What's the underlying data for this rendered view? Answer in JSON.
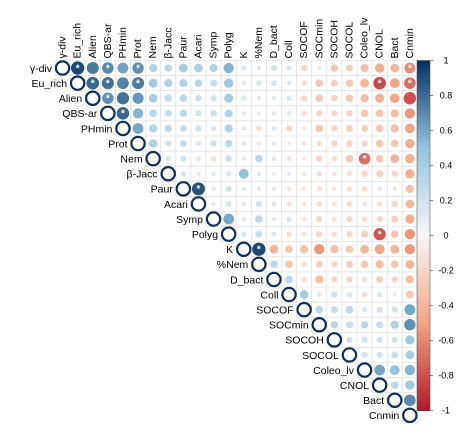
{
  "chart_data": {
    "type": "heatmap",
    "subtype": "upper-triangle circle correlogram",
    "variables": [
      "γ-div",
      "Eu_rich",
      "Alien",
      "QBS-ar",
      "PHmin",
      "Prot",
      "Nem",
      "β-Jacc",
      "Paur",
      "Acari",
      "Symp",
      "Polyg",
      "K",
      "%Nem",
      "D_bact",
      "Coll",
      "SOCOF",
      "SOCmin",
      "SOCOH",
      "SOCOL",
      "Coleo_lv",
      "CNOL",
      "Bact",
      "Cnmin"
    ],
    "significance_marker": "*",
    "colorbar": {
      "ticks": [
        "1",
        "0.8",
        "0.6",
        "0.4",
        "0.2",
        "0",
        "-0.2",
        "-0.4",
        "-0.6",
        "-0.8",
        "-1"
      ],
      "range": [
        -1,
        1
      ],
      "colors": {
        "neg": "#b2182b",
        "neg_mid": "#f4a582",
        "zero": "#f7f7f7",
        "pos_mid": "#92c5de",
        "pos": "#053061"
      }
    },
    "grid": true,
    "matrix": [
      [
        1.0,
        0.92,
        0.75,
        0.7,
        0.62,
        0.68,
        0.35,
        0.3,
        0.4,
        0.38,
        0.35,
        0.55,
        0.15,
        0.12,
        0.2,
        0.15,
        -0.2,
        0.1,
        -0.3,
        -0.25,
        -0.35,
        -0.45,
        -0.4,
        -0.6
      ],
      [
        null,
        1.0,
        0.82,
        0.78,
        0.72,
        0.75,
        0.42,
        0.35,
        0.35,
        0.3,
        0.25,
        0.45,
        0.12,
        0.15,
        0.18,
        0.12,
        -0.15,
        -0.3,
        -0.25,
        -0.3,
        -0.4,
        -0.82,
        -0.5,
        -0.7
      ],
      [
        null,
        null,
        1.0,
        0.68,
        0.78,
        0.65,
        0.4,
        0.28,
        0.3,
        0.22,
        0.2,
        0.42,
        0.15,
        0.1,
        0.12,
        0.15,
        -0.2,
        -0.28,
        -0.22,
        -0.3,
        -0.35,
        -0.42,
        -0.48,
        -0.8
      ],
      [
        null,
        null,
        null,
        1.0,
        0.82,
        0.55,
        0.3,
        0.25,
        0.28,
        0.2,
        0.22,
        0.35,
        0.1,
        0.08,
        0.1,
        0.12,
        -0.15,
        -0.2,
        -0.18,
        -0.22,
        -0.3,
        -0.3,
        -0.35,
        -0.55
      ],
      [
        null,
        null,
        null,
        null,
        1.0,
        0.6,
        0.35,
        0.28,
        0.25,
        0.2,
        0.15,
        0.35,
        0.1,
        -0.15,
        0.12,
        -0.2,
        -0.1,
        -0.3,
        -0.2,
        -0.25,
        -0.25,
        -0.3,
        -0.35,
        -0.5
      ],
      [
        null,
        null,
        null,
        null,
        null,
        1.0,
        0.38,
        0.2,
        0.25,
        0.15,
        0.2,
        0.3,
        0.12,
        -0.1,
        0.1,
        0.08,
        -0.12,
        -0.15,
        -0.2,
        -0.22,
        -0.2,
        -0.3,
        -0.3,
        -0.45
      ],
      [
        null,
        null,
        null,
        null,
        null,
        null,
        1.0,
        0.15,
        0.2,
        0.12,
        -0.15,
        0.22,
        0.1,
        0.3,
        0.12,
        -0.12,
        -0.1,
        -0.2,
        -0.15,
        -0.3,
        -0.7,
        -0.3,
        -0.4,
        -0.45
      ],
      [
        null,
        null,
        null,
        null,
        null,
        null,
        null,
        1.0,
        0.15,
        0.1,
        0.12,
        0.15,
        0.5,
        0.1,
        0.08,
        0.1,
        -0.1,
        -0.15,
        -0.12,
        -0.15,
        -0.2,
        -0.25,
        -0.2,
        -0.45
      ],
      [
        null,
        null,
        null,
        null,
        null,
        null,
        null,
        null,
        1.0,
        0.88,
        0.1,
        0.2,
        0.1,
        -0.1,
        0.1,
        -0.1,
        -0.1,
        -0.12,
        -0.1,
        -0.15,
        -0.15,
        -0.12,
        -0.12,
        -0.35
      ],
      [
        null,
        null,
        null,
        null,
        null,
        null,
        null,
        null,
        null,
        1.0,
        0.1,
        0.18,
        0.12,
        0.2,
        0.12,
        -0.12,
        -0.1,
        -0.15,
        -0.12,
        -0.15,
        -0.12,
        -0.15,
        -0.2,
        -0.38
      ],
      [
        null,
        null,
        null,
        null,
        null,
        null,
        null,
        null,
        null,
        null,
        1.0,
        0.6,
        0.12,
        0.3,
        0.1,
        0.15,
        -0.12,
        -0.2,
        -0.12,
        -0.2,
        -0.15,
        -0.2,
        -0.25,
        -0.45
      ],
      [
        null,
        null,
        null,
        null,
        null,
        null,
        null,
        null,
        null,
        null,
        null,
        1.0,
        0.15,
        0.25,
        0.15,
        -0.15,
        -0.12,
        -0.2,
        -0.15,
        -0.2,
        -0.25,
        -0.78,
        -0.3,
        -0.55
      ],
      [
        null,
        null,
        null,
        null,
        null,
        null,
        null,
        null,
        null,
        null,
        null,
        null,
        1.0,
        0.92,
        -0.4,
        -0.3,
        -0.35,
        -0.55,
        -0.35,
        -0.3,
        -0.4,
        -0.5,
        -0.4,
        -0.55
      ],
      [
        null,
        null,
        null,
        null,
        null,
        null,
        null,
        null,
        null,
        null,
        null,
        null,
        null,
        1.0,
        0.3,
        -0.3,
        -0.15,
        -0.25,
        -0.2,
        -0.25,
        -0.3,
        -0.35,
        -0.3,
        -0.4
      ],
      [
        null,
        null,
        null,
        null,
        null,
        null,
        null,
        null,
        null,
        null,
        null,
        null,
        null,
        null,
        1.0,
        0.3,
        -0.15,
        -0.35,
        -0.2,
        -0.2,
        -0.15,
        -0.25,
        -0.2,
        -0.35
      ],
      [
        null,
        null,
        null,
        null,
        null,
        null,
        null,
        null,
        null,
        null,
        null,
        null,
        null,
        null,
        null,
        1.0,
        0.4,
        0.12,
        0.2,
        0.15,
        -0.15,
        0.15,
        -0.1,
        -0.3
      ],
      [
        null,
        null,
        null,
        null,
        null,
        null,
        null,
        null,
        null,
        null,
        null,
        null,
        null,
        null,
        null,
        null,
        1.0,
        0.3,
        0.25,
        0.3,
        0.15,
        0.2,
        0.2,
        0.6
      ],
      [
        null,
        null,
        null,
        null,
        null,
        null,
        null,
        null,
        null,
        null,
        null,
        null,
        null,
        null,
        null,
        null,
        null,
        1.0,
        0.3,
        0.25,
        0.3,
        0.25,
        0.35,
        0.68
      ],
      [
        null,
        null,
        null,
        null,
        null,
        null,
        null,
        null,
        null,
        null,
        null,
        null,
        null,
        null,
        null,
        null,
        null,
        null,
        1.0,
        0.2,
        0.2,
        0.2,
        0.2,
        0.45
      ],
      [
        null,
        null,
        null,
        null,
        null,
        null,
        null,
        null,
        null,
        null,
        null,
        null,
        null,
        null,
        null,
        null,
        null,
        null,
        null,
        1.0,
        0.2,
        0.2,
        0.25,
        0.4
      ],
      [
        null,
        null,
        null,
        null,
        null,
        null,
        null,
        null,
        null,
        null,
        null,
        null,
        null,
        null,
        null,
        null,
        null,
        null,
        null,
        null,
        1.0,
        0.6,
        0.5,
        0.55
      ],
      [
        null,
        null,
        null,
        null,
        null,
        null,
        null,
        null,
        null,
        null,
        null,
        null,
        null,
        null,
        null,
        null,
        null,
        null,
        null,
        null,
        null,
        1.0,
        0.3,
        0.45
      ],
      [
        null,
        null,
        null,
        null,
        null,
        null,
        null,
        null,
        null,
        null,
        null,
        null,
        null,
        null,
        null,
        null,
        null,
        null,
        null,
        null,
        null,
        null,
        1.0,
        0.7
      ],
      [
        null,
        null,
        null,
        null,
        null,
        null,
        null,
        null,
        null,
        null,
        null,
        null,
        null,
        null,
        null,
        null,
        null,
        null,
        null,
        null,
        null,
        null,
        null,
        1.0
      ]
    ],
    "significant": [
      [
        0,
        1
      ],
      [
        0,
        3
      ],
      [
        0,
        5
      ],
      [
        1,
        2
      ],
      [
        1,
        3
      ],
      [
        1,
        5
      ],
      [
        1,
        21
      ],
      [
        1,
        23
      ],
      [
        2,
        3
      ],
      [
        3,
        4
      ],
      [
        6,
        20
      ],
      [
        8,
        9
      ],
      [
        11,
        21
      ],
      [
        12,
        13
      ],
      [
        0,
        23
      ]
    ]
  }
}
